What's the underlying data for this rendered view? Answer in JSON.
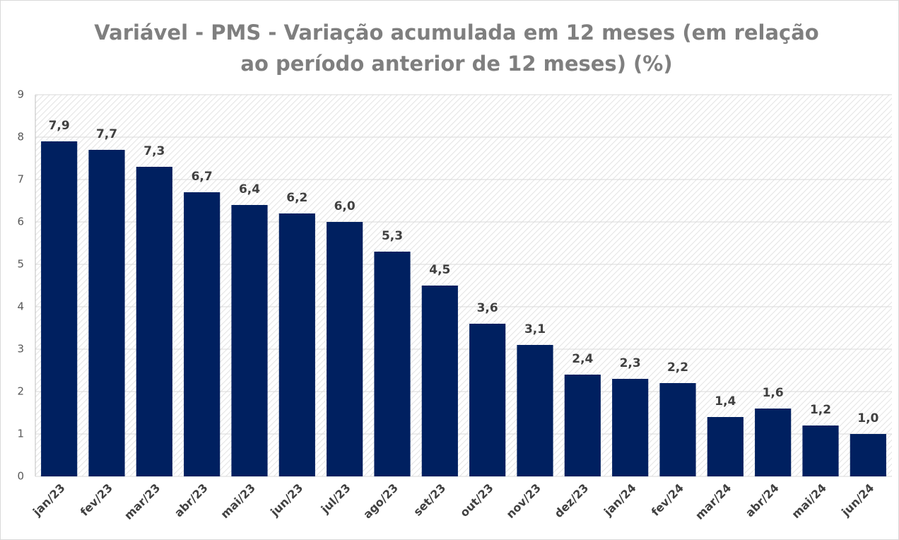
{
  "chart_data": {
    "type": "bar",
    "title": [
      "Variável - PMS - Variação acumulada em 12 meses (em relação",
      "ao período anterior de 12 meses) (%)"
    ],
    "categories": [
      "jan/23",
      "fev/23",
      "mar/23",
      "abr/23",
      "mai/23",
      "jun/23",
      "jul/23",
      "ago/23",
      "set/23",
      "out/23",
      "nov/23",
      "dez/23",
      "jan/24",
      "fev/24",
      "mar/24",
      "abr/24",
      "mai/24",
      "jun/24"
    ],
    "values": [
      7.9,
      7.7,
      7.3,
      6.7,
      6.4,
      6.2,
      6.0,
      5.3,
      4.5,
      3.6,
      3.1,
      2.4,
      2.3,
      2.2,
      1.4,
      1.6,
      1.2,
      1.0
    ],
    "value_labels": [
      "7,9",
      "7,7",
      "7,3",
      "6,7",
      "6,4",
      "6,2",
      "6,0",
      "5,3",
      "4,5",
      "3,6",
      "3,1",
      "2,4",
      "2,3",
      "2,2",
      "1,4",
      "1,6",
      "1,2",
      "1,0"
    ],
    "color": "#002060",
    "ylim": [
      0,
      9
    ],
    "yticks": [
      0,
      1,
      2,
      3,
      4,
      5,
      6,
      7,
      8,
      9
    ],
    "grid": true
  }
}
